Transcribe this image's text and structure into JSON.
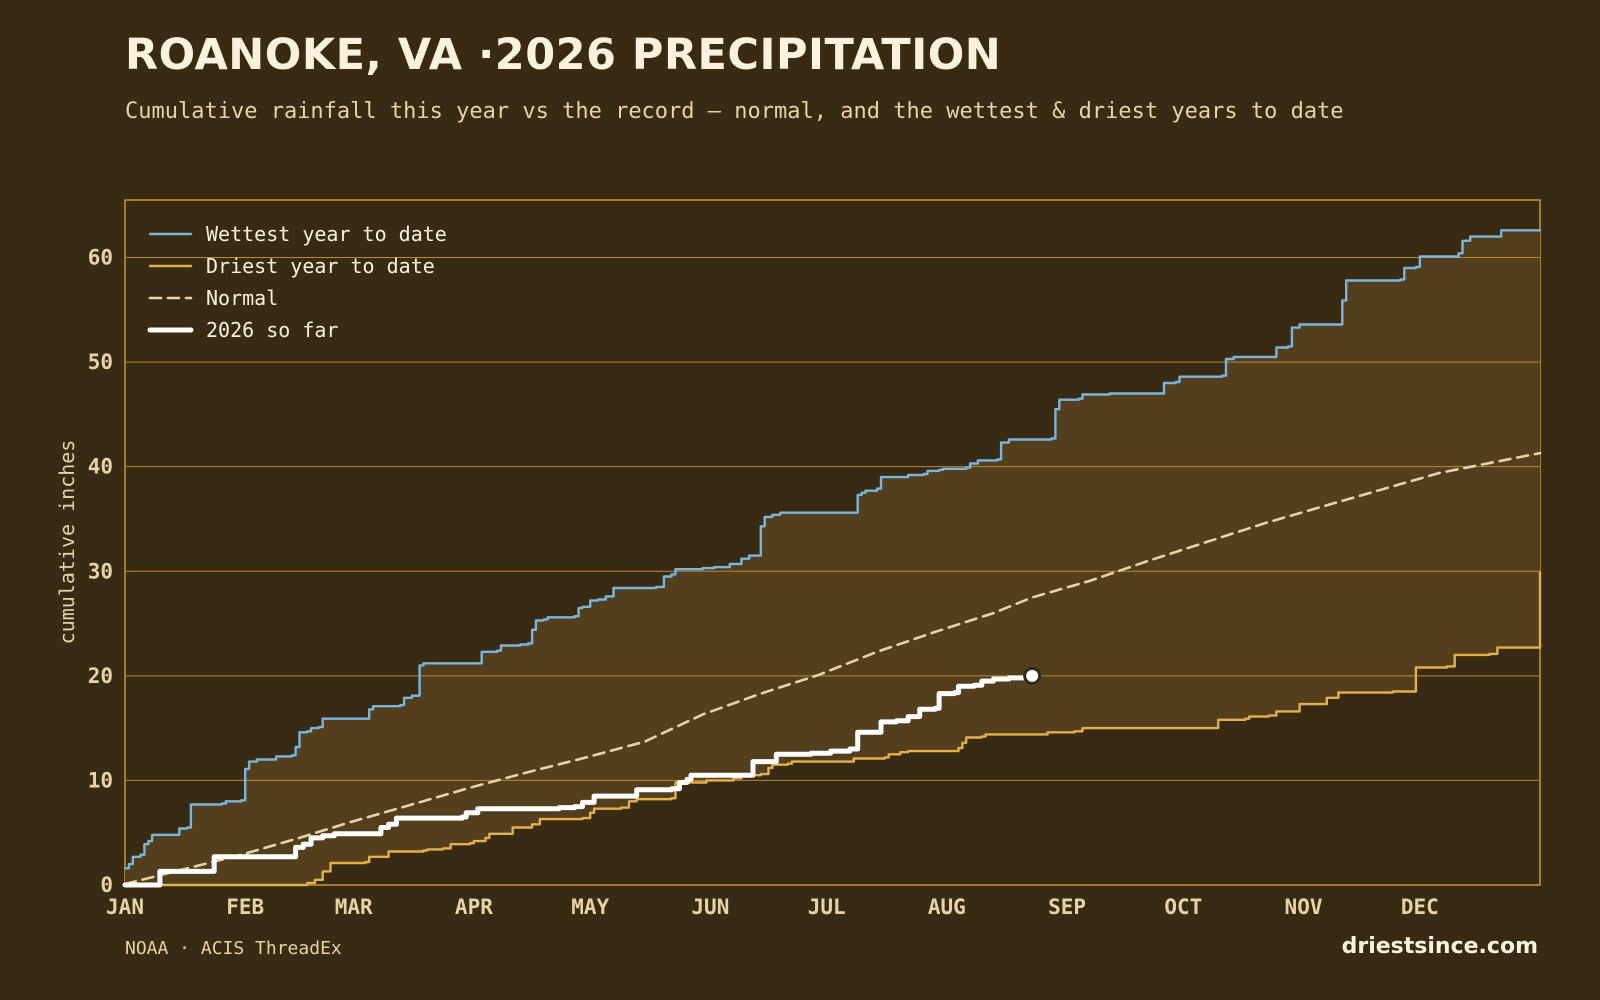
{
  "title": "ROANOKE, VA ·2026 PRECIPITATION",
  "subtitle": "Cumulative rainfall this year vs the record — normal, and the wettest & driest years to date",
  "source": "NOAA · ACIS ThreadEx",
  "brand": "driestsince.com",
  "colors": {
    "background": "#382a13",
    "band": "#533f1e",
    "grid": "#b48a37",
    "frame": "#c59a40",
    "wettest": "#7bb5dc",
    "driest": "#e2b04c",
    "normal": "#e6d3a8",
    "current": "#ffffff"
  },
  "chart_data": {
    "type": "line",
    "ylabel": "cumulative inches",
    "ylim": [
      0,
      65.5
    ],
    "yticks": [
      0,
      10,
      20,
      30,
      40,
      50,
      60
    ],
    "xlim": [
      1,
      366
    ],
    "xticks": [
      {
        "label": "JAN",
        "day": 1
      },
      {
        "label": "FEB",
        "day": 32
      },
      {
        "label": "MAR",
        "day": 60
      },
      {
        "label": "APR",
        "day": 91
      },
      {
        "label": "MAY",
        "day": 121
      },
      {
        "label": "JUN",
        "day": 152
      },
      {
        "label": "JUL",
        "day": 182
      },
      {
        "label": "AUG",
        "day": 213
      },
      {
        "label": "SEP",
        "day": 244
      },
      {
        "label": "OCT",
        "day": 274
      },
      {
        "label": "NOV",
        "day": 305
      },
      {
        "label": "DEC",
        "day": 335
      }
    ],
    "grid": true,
    "legend_position": "top-left",
    "series": [
      {
        "name": "Wettest year to date",
        "style": "step",
        "color": "#7bb5dc",
        "points": [
          [
            1,
            1.6
          ],
          [
            2,
            2.0
          ],
          [
            3,
            2.7
          ],
          [
            5,
            2.9
          ],
          [
            6,
            3.9
          ],
          [
            7,
            4.2
          ],
          [
            8,
            4.8
          ],
          [
            14,
            4.8
          ],
          [
            15,
            5.4
          ],
          [
            17,
            5.5
          ],
          [
            18,
            7.7
          ],
          [
            26,
            7.8
          ],
          [
            27,
            8.0
          ],
          [
            31,
            8.1
          ],
          [
            32,
            11.1
          ],
          [
            33,
            11.8
          ],
          [
            35,
            12.0
          ],
          [
            39,
            12.0
          ],
          [
            40,
            12.3
          ],
          [
            44,
            12.4
          ],
          [
            45,
            13.2
          ],
          [
            46,
            14.6
          ],
          [
            48,
            14.7
          ],
          [
            49,
            15.0
          ],
          [
            51,
            15.1
          ],
          [
            52,
            15.9
          ],
          [
            63,
            15.9
          ],
          [
            64,
            16.8
          ],
          [
            65,
            17.1
          ],
          [
            72,
            17.2
          ],
          [
            73,
            17.9
          ],
          [
            75,
            18.1
          ],
          [
            77,
            21.0
          ],
          [
            78,
            21.2
          ],
          [
            92,
            21.2
          ],
          [
            93,
            22.3
          ],
          [
            97,
            22.4
          ],
          [
            98,
            22.9
          ],
          [
            102,
            22.9
          ],
          [
            103,
            23.0
          ],
          [
            105,
            23.1
          ],
          [
            106,
            24.4
          ],
          [
            107,
            25.3
          ],
          [
            109,
            25.4
          ],
          [
            110,
            25.6
          ],
          [
            117,
            25.7
          ],
          [
            118,
            26.5
          ],
          [
            119,
            26.6
          ],
          [
            121,
            27.2
          ],
          [
            123,
            27.3
          ],
          [
            125,
            27.6
          ],
          [
            127,
            28.4
          ],
          [
            138,
            28.5
          ],
          [
            140,
            29.5
          ],
          [
            142,
            29.7
          ],
          [
            143,
            30.2
          ],
          [
            150,
            30.3
          ],
          [
            153,
            30.4
          ],
          [
            157,
            30.7
          ],
          [
            160,
            31.2
          ],
          [
            162,
            31.5
          ],
          [
            164,
            31.5
          ],
          [
            165,
            34.3
          ],
          [
            166,
            35.2
          ],
          [
            168,
            35.4
          ],
          [
            170,
            35.6
          ],
          [
            188,
            35.6
          ],
          [
            190,
            37.3
          ],
          [
            191,
            37.5
          ],
          [
            192,
            37.7
          ],
          [
            195,
            37.9
          ],
          [
            196,
            39.0
          ],
          [
            202,
            39.0
          ],
          [
            203,
            39.2
          ],
          [
            207,
            39.3
          ],
          [
            208,
            39.6
          ],
          [
            211,
            39.7
          ],
          [
            212,
            39.8
          ],
          [
            218,
            39.9
          ],
          [
            219,
            40.3
          ],
          [
            221,
            40.6
          ],
          [
            226,
            40.7
          ],
          [
            227,
            42.3
          ],
          [
            229,
            42.6
          ],
          [
            240,
            42.7
          ],
          [
            241,
            45.5
          ],
          [
            242,
            46.4
          ],
          [
            247,
            46.5
          ],
          [
            248,
            46.9
          ],
          [
            254,
            46.9
          ],
          [
            255,
            47.0
          ],
          [
            268,
            47.0
          ],
          [
            269,
            48.0
          ],
          [
            272,
            48.1
          ],
          [
            273,
            48.6
          ],
          [
            284,
            48.7
          ],
          [
            285,
            50.3
          ],
          [
            287,
            50.5
          ],
          [
            297,
            50.5
          ],
          [
            298,
            51.4
          ],
          [
            301,
            51.5
          ],
          [
            302,
            53.3
          ],
          [
            304,
            53.6
          ],
          [
            314,
            53.6
          ],
          [
            315,
            55.9
          ],
          [
            316,
            57.8
          ],
          [
            330,
            57.9
          ],
          [
            331,
            59.0
          ],
          [
            334,
            59.1
          ],
          [
            335,
            60.1
          ],
          [
            345,
            60.4
          ],
          [
            346,
            61.6
          ],
          [
            348,
            62.0
          ],
          [
            355,
            62.0
          ],
          [
            356,
            62.6
          ],
          [
            366,
            62.6
          ]
        ]
      },
      {
        "name": "Driest year to date",
        "style": "step",
        "color": "#e2b04c",
        "points": [
          [
            1,
            0.0
          ],
          [
            46,
            0.0
          ],
          [
            48,
            0.2
          ],
          [
            50,
            0.5
          ],
          [
            52,
            1.3
          ],
          [
            54,
            2.1
          ],
          [
            63,
            2.2
          ],
          [
            64,
            2.7
          ],
          [
            68,
            2.7
          ],
          [
            69,
            3.2
          ],
          [
            78,
            3.3
          ],
          [
            79,
            3.4
          ],
          [
            83,
            3.5
          ],
          [
            85,
            3.9
          ],
          [
            90,
            4.0
          ],
          [
            91,
            4.2
          ],
          [
            94,
            4.5
          ],
          [
            95,
            4.9
          ],
          [
            100,
            4.9
          ],
          [
            101,
            5.5
          ],
          [
            106,
            5.8
          ],
          [
            108,
            6.3
          ],
          [
            119,
            6.4
          ],
          [
            121,
            6.9
          ],
          [
            122,
            7.3
          ],
          [
            129,
            7.4
          ],
          [
            131,
            8.0
          ],
          [
            133,
            8.2
          ],
          [
            142,
            8.3
          ],
          [
            143,
            9.8
          ],
          [
            149,
            9.8
          ],
          [
            151,
            10.0
          ],
          [
            158,
            10.2
          ],
          [
            160,
            10.5
          ],
          [
            165,
            10.6
          ],
          [
            167,
            11.2
          ],
          [
            168,
            11.5
          ],
          [
            172,
            11.6
          ],
          [
            173,
            11.8
          ],
          [
            188,
            11.8
          ],
          [
            189,
            12.1
          ],
          [
            197,
            12.2
          ],
          [
            198,
            12.5
          ],
          [
            201,
            12.7
          ],
          [
            203,
            12.8
          ],
          [
            214,
            12.8
          ],
          [
            216,
            13.1
          ],
          [
            217,
            13.6
          ],
          [
            218,
            14.1
          ],
          [
            222,
            14.2
          ],
          [
            223,
            14.4
          ],
          [
            238,
            14.4
          ],
          [
            239,
            14.6
          ],
          [
            246,
            14.7
          ],
          [
            248,
            15.0
          ],
          [
            281,
            15.0
          ],
          [
            283,
            15.8
          ],
          [
            290,
            15.9
          ],
          [
            291,
            16.1
          ],
          [
            296,
            16.2
          ],
          [
            298,
            16.6
          ],
          [
            302,
            16.6
          ],
          [
            304,
            17.3
          ],
          [
            309,
            17.3
          ],
          [
            311,
            17.9
          ],
          [
            314,
            18.4
          ],
          [
            328,
            18.5
          ],
          [
            333,
            18.5
          ],
          [
            334,
            20.8
          ],
          [
            342,
            20.9
          ],
          [
            344,
            22.0
          ],
          [
            353,
            22.1
          ],
          [
            355,
            22.7
          ],
          [
            358,
            22.7
          ],
          [
            366,
            29.9
          ]
        ]
      },
      {
        "name": "Normal",
        "style": "dashed",
        "color": "#e6d3a8",
        "points": [
          [
            1,
            0.1
          ],
          [
            15,
            1.4
          ],
          [
            31,
            2.9
          ],
          [
            45,
            4.4
          ],
          [
            59,
            6.0
          ],
          [
            75,
            7.7
          ],
          [
            90,
            9.3
          ],
          [
            105,
            10.8
          ],
          [
            120,
            12.2
          ],
          [
            135,
            13.7
          ],
          [
            150,
            16.3
          ],
          [
            165,
            18.3
          ],
          [
            180,
            20.1
          ],
          [
            195,
            22.3
          ],
          [
            210,
            24.2
          ],
          [
            225,
            26.0
          ],
          [
            235,
            27.5
          ],
          [
            250,
            29.1
          ],
          [
            265,
            31.0
          ],
          [
            280,
            32.8
          ],
          [
            295,
            34.6
          ],
          [
            310,
            36.2
          ],
          [
            325,
            37.8
          ],
          [
            340,
            39.4
          ],
          [
            355,
            40.5
          ],
          [
            366,
            41.3
          ]
        ]
      },
      {
        "name": "2026 so far",
        "style": "step-thick",
        "color": "#ffffff",
        "points": [
          [
            1,
            0.0
          ],
          [
            8,
            0.0
          ],
          [
            10,
            1.3
          ],
          [
            23,
            1.3
          ],
          [
            24,
            2.7
          ],
          [
            44,
            2.7
          ],
          [
            45,
            3.6
          ],
          [
            47,
            3.9
          ],
          [
            49,
            4.5
          ],
          [
            52,
            4.7
          ],
          [
            55,
            4.9
          ],
          [
            66,
            4.9
          ],
          [
            67,
            5.5
          ],
          [
            69,
            5.8
          ],
          [
            71,
            6.4
          ],
          [
            88,
            6.5
          ],
          [
            89,
            6.9
          ],
          [
            92,
            7.3
          ],
          [
            113,
            7.4
          ],
          [
            117,
            7.5
          ],
          [
            119,
            7.9
          ],
          [
            122,
            8.5
          ],
          [
            132,
            8.5
          ],
          [
            133,
            9.1
          ],
          [
            142,
            9.2
          ],
          [
            144,
            9.8
          ],
          [
            146,
            10.1
          ],
          [
            147,
            10.5
          ],
          [
            162,
            10.5
          ],
          [
            163,
            11.8
          ],
          [
            168,
            11.8
          ],
          [
            169,
            12.5
          ],
          [
            178,
            12.6
          ],
          [
            183,
            12.8
          ],
          [
            188,
            13.0
          ],
          [
            190,
            14.6
          ],
          [
            194,
            14.6
          ],
          [
            196,
            15.6
          ],
          [
            200,
            15.7
          ],
          [
            203,
            16.1
          ],
          [
            206,
            16.8
          ],
          [
            210,
            16.9
          ],
          [
            211,
            18.3
          ],
          [
            215,
            18.4
          ],
          [
            216,
            19.0
          ],
          [
            220,
            19.1
          ],
          [
            222,
            19.5
          ],
          [
            225,
            19.7
          ],
          [
            229,
            19.8
          ],
          [
            235,
            20.0
          ]
        ]
      }
    ]
  }
}
